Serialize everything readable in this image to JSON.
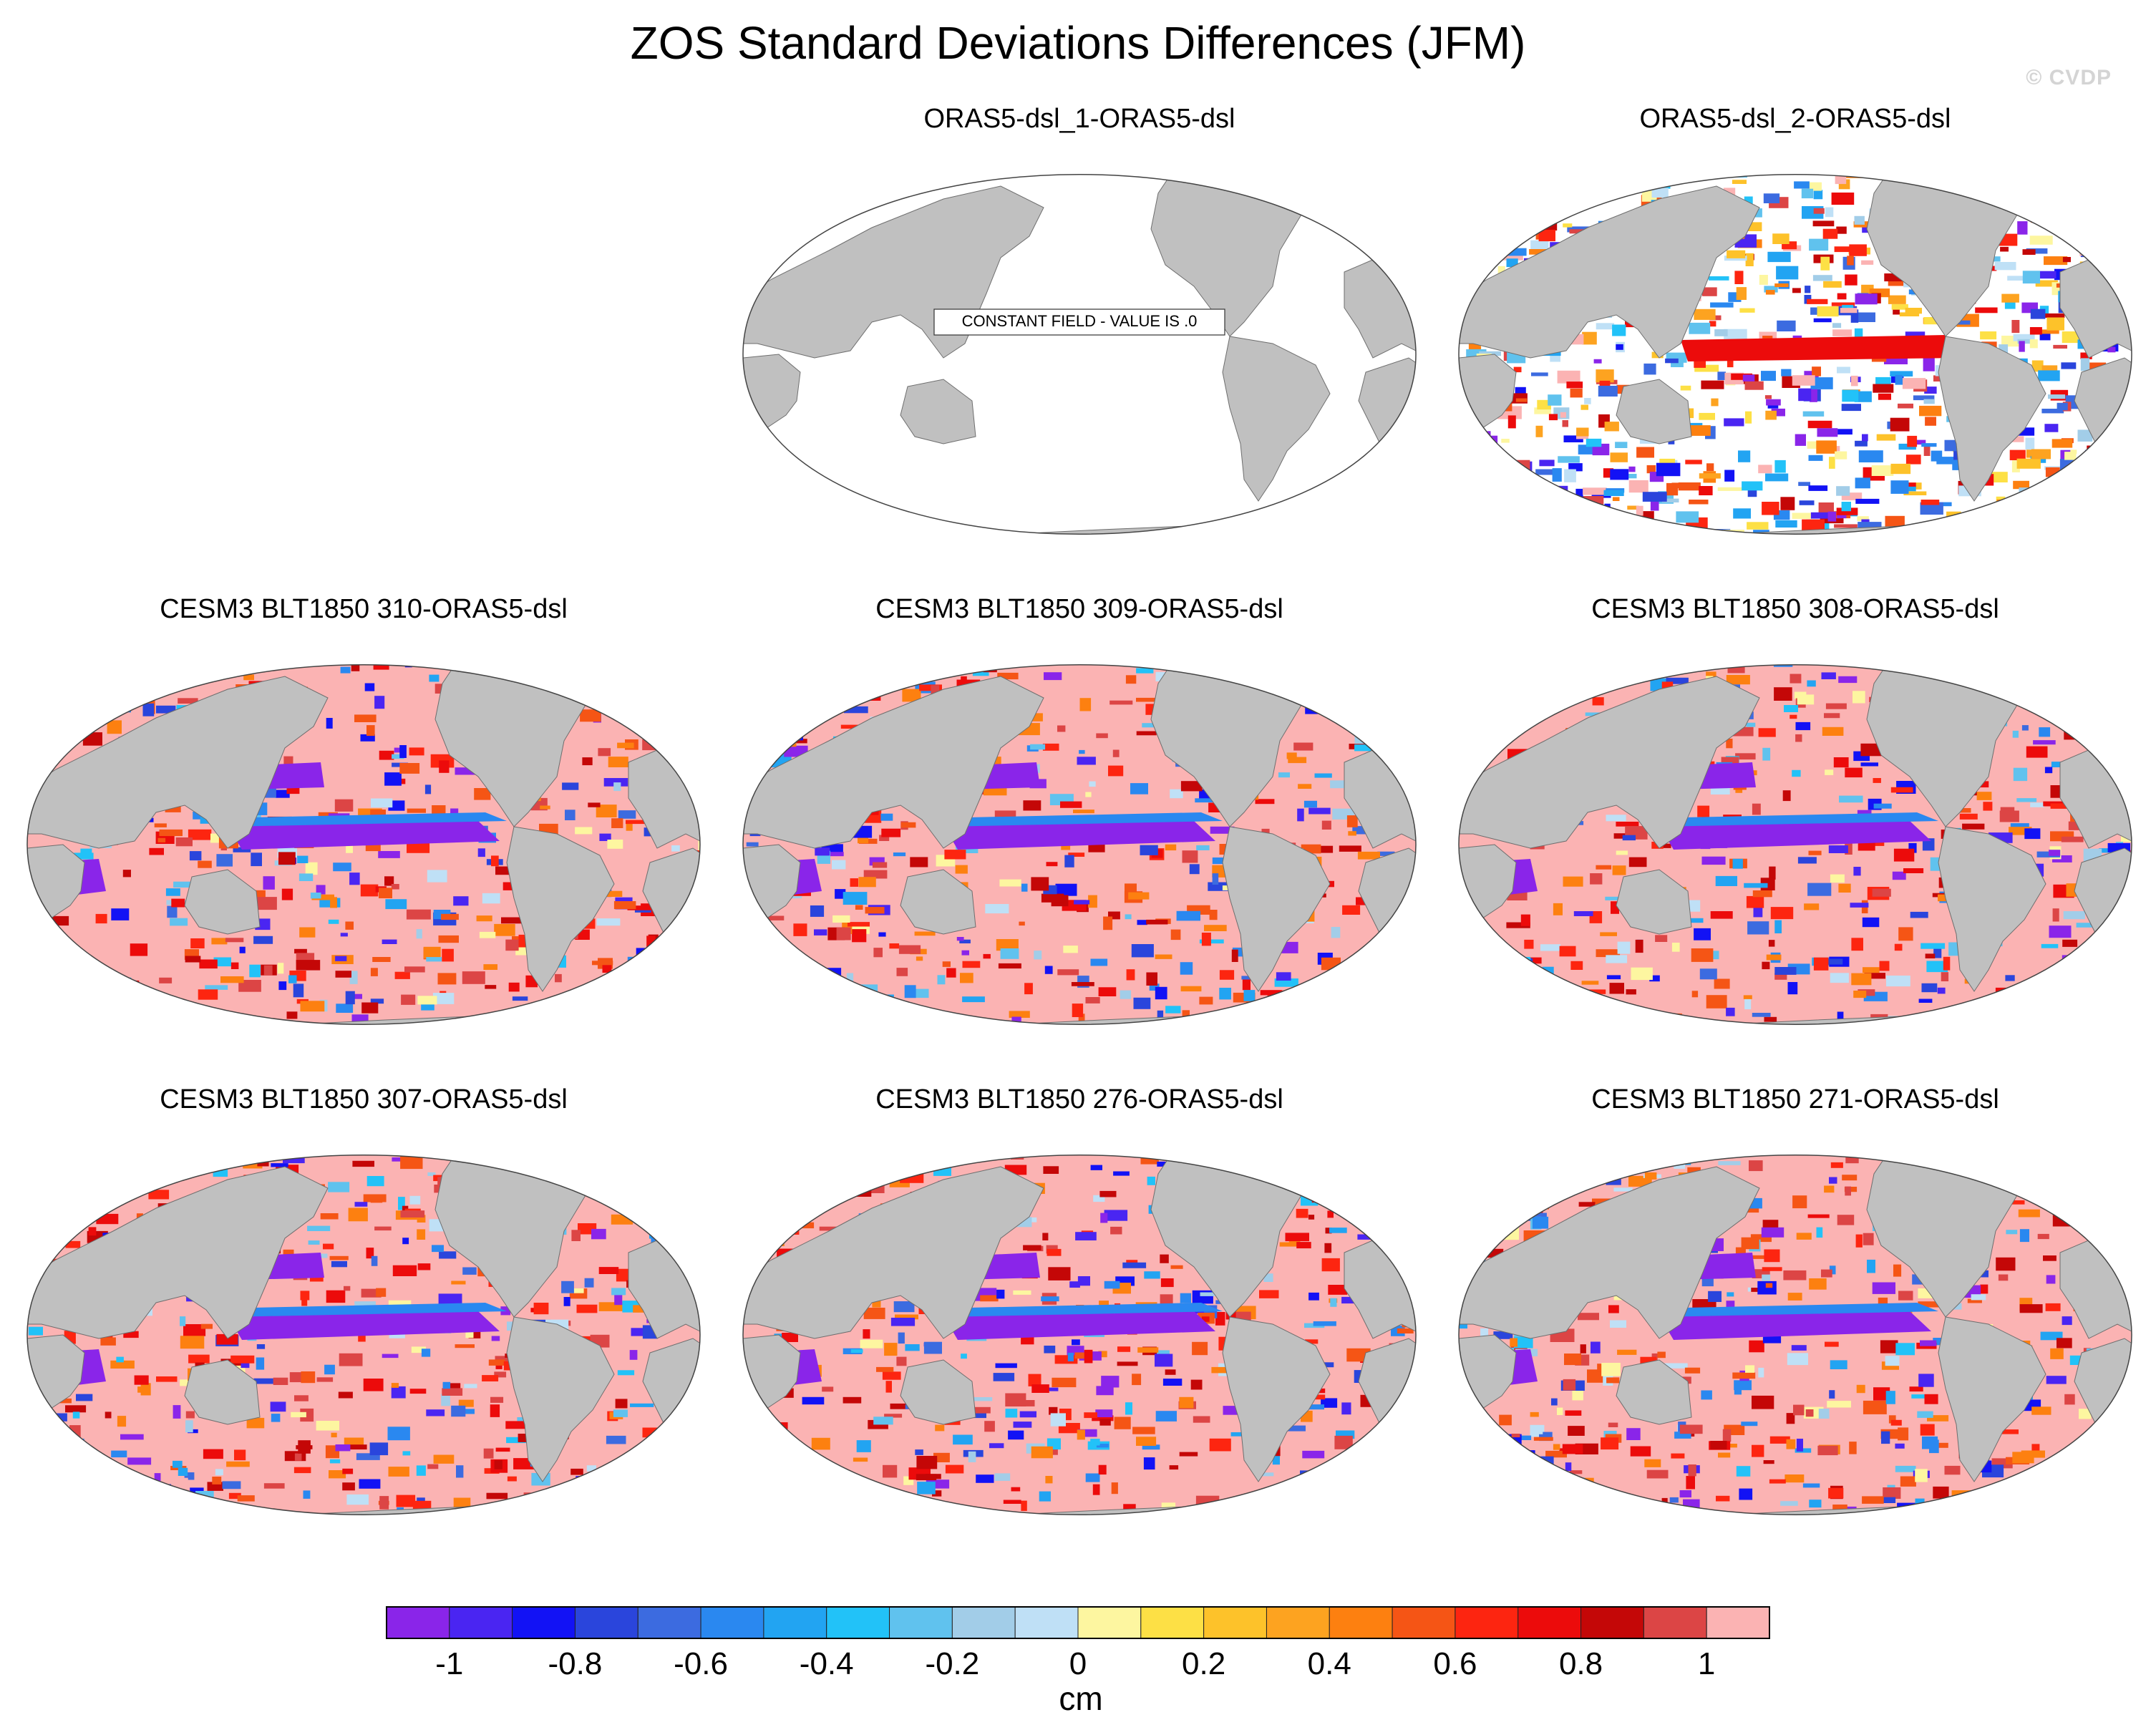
{
  "title": "ZOS Standard Deviations Differences (JFM)",
  "watermark": "© CVDP",
  "panels": [
    {
      "title": "ORAS5-dsl_1-ORAS5-dsl",
      "mode": "constant",
      "constant_label": "CONSTANT FIELD - VALUE IS .0"
    },
    {
      "title": "ORAS5-dsl_2-ORAS5-dsl",
      "mode": "mixed"
    },
    {
      "title": "CESM3 BLT1850 310-ORAS5-dsl",
      "mode": "model"
    },
    {
      "title": "CESM3 BLT1850 309-ORAS5-dsl",
      "mode": "model"
    },
    {
      "title": "CESM3 BLT1850 308-ORAS5-dsl",
      "mode": "model"
    },
    {
      "title": "CESM3 BLT1850 307-ORAS5-dsl",
      "mode": "model"
    },
    {
      "title": "CESM3 BLT1850 276-ORAS5-dsl",
      "mode": "model"
    },
    {
      "title": "CESM3 BLT1850 271-ORAS5-dsl",
      "mode": "model"
    }
  ],
  "colorbar": {
    "unit": "cm",
    "tick_labels": [
      "-1",
      "-0.8",
      "-0.6",
      "-0.4",
      "-0.2",
      "0",
      "0.2",
      "0.4",
      "0.6",
      "0.8",
      "1"
    ],
    "colors": [
      "#8a25e9",
      "#4a25f2",
      "#1212f5",
      "#2a45dc",
      "#3c6be0",
      "#2a88f0",
      "#22a4f2",
      "#22c2f8",
      "#60c2ee",
      "#a2cde8",
      "#bfe0f6",
      "#fdf6a0",
      "#fde045",
      "#fdc22a",
      "#fda320",
      "#fd8010",
      "#f55515",
      "#fd2510",
      "#ec0b0b",
      "#c40707",
      "#dc4545",
      "#fbb3b3"
    ],
    "land_color": "#c0c0c0"
  }
}
